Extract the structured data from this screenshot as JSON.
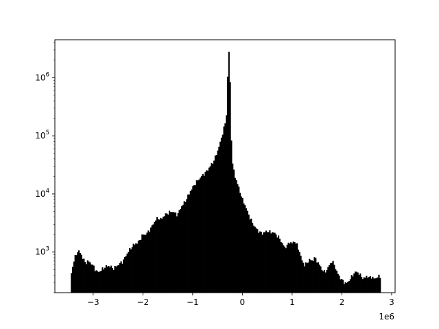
{
  "chart_data": {
    "type": "bar",
    "subtype": "histogram",
    "y_scale": "log",
    "x_axis_multiplier_label": "1e6",
    "xlim": [
      -3.77,
      3.07
    ],
    "ylim": [
      200,
      4500000
    ],
    "x_ticks": [
      {
        "value": -3,
        "label": "−3"
      },
      {
        "value": -2,
        "label": "−2"
      },
      {
        "value": -1,
        "label": "−1"
      },
      {
        "value": 0,
        "label": "0"
      },
      {
        "value": 1,
        "label": "1"
      },
      {
        "value": 2,
        "label": "2"
      },
      {
        "value": 3,
        "label": "3"
      }
    ],
    "y_ticks": [
      {
        "value": 1000,
        "base": "10",
        "exponent": "3"
      },
      {
        "value": 10000,
        "base": "10",
        "exponent": "4"
      },
      {
        "value": 100000,
        "base": "10",
        "exponent": "5"
      },
      {
        "value": 1000000,
        "base": "10",
        "exponent": "6"
      }
    ],
    "bar_color": "#000000",
    "profile": [
      [
        -3.45,
        380
      ],
      [
        -3.4,
        650
      ],
      [
        -3.35,
        900
      ],
      [
        -3.3,
        1050
      ],
      [
        -3.25,
        950
      ],
      [
        -3.2,
        750
      ],
      [
        -3.15,
        650
      ],
      [
        -3.1,
        700
      ],
      [
        -3.05,
        650
      ],
      [
        -3.0,
        580
      ],
      [
        -2.95,
        480
      ],
      [
        -2.9,
        450
      ],
      [
        -2.85,
        480
      ],
      [
        -2.8,
        520
      ],
      [
        -2.75,
        560
      ],
      [
        -2.7,
        580
      ],
      [
        -2.65,
        560
      ],
      [
        -2.6,
        520
      ],
      [
        -2.55,
        560
      ],
      [
        -2.5,
        600
      ],
      [
        -2.45,
        650
      ],
      [
        -2.4,
        700
      ],
      [
        -2.35,
        850
      ],
      [
        -2.3,
        1000
      ],
      [
        -2.25,
        1150
      ],
      [
        -2.2,
        1300
      ],
      [
        -2.15,
        1400
      ],
      [
        -2.1,
        1450
      ],
      [
        -2.05,
        1700
      ],
      [
        -2.0,
        2000
      ],
      [
        -1.95,
        2000
      ],
      [
        -1.9,
        2200
      ],
      [
        -1.85,
        2500
      ],
      [
        -1.8,
        3000
      ],
      [
        -1.75,
        3500
      ],
      [
        -1.7,
        3900
      ],
      [
        -1.65,
        3600
      ],
      [
        -1.6,
        4000
      ],
      [
        -1.55,
        4400
      ],
      [
        -1.5,
        4700
      ],
      [
        -1.45,
        4900
      ],
      [
        -1.4,
        5000
      ],
      [
        -1.35,
        4600
      ],
      [
        -1.3,
        4400
      ],
      [
        -1.25,
        5600
      ],
      [
        -1.2,
        6500
      ],
      [
        -1.15,
        7500
      ],
      [
        -1.1,
        9000
      ],
      [
        -1.05,
        11000
      ],
      [
        -1.0,
        13000
      ],
      [
        -0.95,
        15000
      ],
      [
        -0.9,
        17000
      ],
      [
        -0.85,
        19000
      ],
      [
        -0.8,
        21000
      ],
      [
        -0.75,
        23000
      ],
      [
        -0.7,
        26000
      ],
      [
        -0.65,
        30000
      ],
      [
        -0.6,
        34000
      ],
      [
        -0.55,
        42000
      ],
      [
        -0.5,
        55000
      ],
      [
        -0.45,
        75000
      ],
      [
        -0.4,
        110000
      ],
      [
        -0.35,
        160000
      ],
      [
        -0.32,
        240000
      ],
      [
        -0.3,
        900000
      ],
      [
        -0.28,
        3000000
      ],
      [
        -0.26,
        2400000
      ],
      [
        -0.24,
        400000
      ],
      [
        -0.22,
        70000
      ],
      [
        -0.2,
        33000
      ],
      [
        -0.15,
        20000
      ],
      [
        -0.1,
        15000
      ],
      [
        -0.05,
        11000
      ],
      [
        0.0,
        8000
      ],
      [
        0.05,
        6500
      ],
      [
        0.1,
        5000
      ],
      [
        0.15,
        3900
      ],
      [
        0.2,
        3200
      ],
      [
        0.25,
        2700
      ],
      [
        0.3,
        2400
      ],
      [
        0.35,
        2200
      ],
      [
        0.4,
        2100
      ],
      [
        0.45,
        2200
      ],
      [
        0.5,
        2300
      ],
      [
        0.55,
        2200
      ],
      [
        0.6,
        2200
      ],
      [
        0.65,
        2100
      ],
      [
        0.7,
        1900
      ],
      [
        0.75,
        1700
      ],
      [
        0.8,
        1400
      ],
      [
        0.85,
        1200
      ],
      [
        0.9,
        1300
      ],
      [
        0.95,
        1500
      ],
      [
        1.0,
        1400
      ],
      [
        1.05,
        1550
      ],
      [
        1.1,
        1300
      ],
      [
        1.15,
        1000
      ],
      [
        1.2,
        700
      ],
      [
        1.25,
        600
      ],
      [
        1.3,
        650
      ],
      [
        1.35,
        750
      ],
      [
        1.4,
        700
      ],
      [
        1.45,
        800
      ],
      [
        1.5,
        700
      ],
      [
        1.55,
        600
      ],
      [
        1.6,
        500
      ],
      [
        1.65,
        450
      ],
      [
        1.7,
        500
      ],
      [
        1.75,
        600
      ],
      [
        1.8,
        700
      ],
      [
        1.85,
        600
      ],
      [
        1.9,
        450
      ],
      [
        1.95,
        380
      ],
      [
        2.0,
        330
      ],
      [
        2.05,
        300
      ],
      [
        2.1,
        290
      ],
      [
        2.15,
        330
      ],
      [
        2.2,
        380
      ],
      [
        2.25,
        440
      ],
      [
        2.3,
        460
      ],
      [
        2.35,
        420
      ],
      [
        2.4,
        370
      ],
      [
        2.45,
        350
      ],
      [
        2.5,
        390
      ],
      [
        2.55,
        360
      ],
      [
        2.6,
        380
      ],
      [
        2.65,
        340
      ],
      [
        2.7,
        370
      ],
      [
        2.75,
        380
      ]
    ],
    "bins": {
      "start": -3.45,
      "end": 2.78,
      "count": 250
    },
    "title": "",
    "xlabel": "",
    "ylabel": ""
  }
}
